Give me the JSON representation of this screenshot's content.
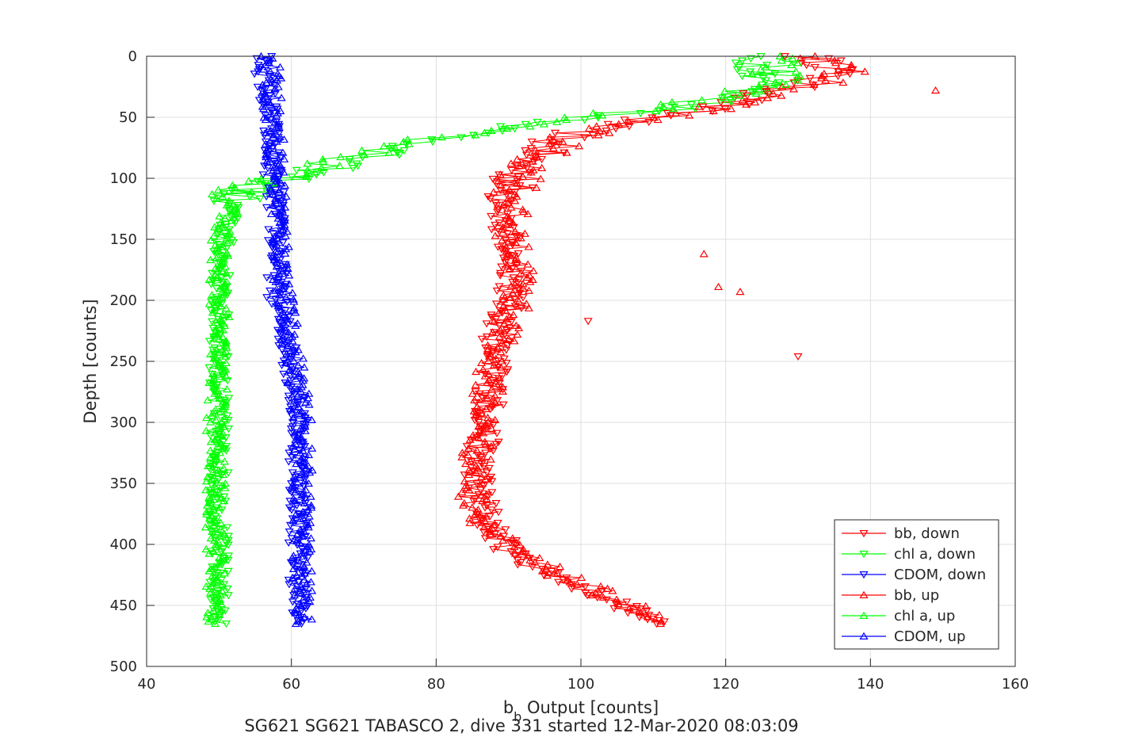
{
  "chart_data": {
    "type": "scatter",
    "title": "SG621 SG621 TABASCO 2, dive 331 started 12-Mar-2020 08:03:09",
    "xlabel_main": "b",
    "xlabel_sub": "b",
    "xlabel_rest": " Output [counts]",
    "ylabel": "Depth [counts]",
    "xlim": [
      40,
      160
    ],
    "ylim": [
      0,
      500
    ],
    "y_reversed": true,
    "grid": true,
    "legend_position": "bottom-right",
    "x_ticks": [
      "40",
      "60",
      "80",
      "100",
      "120",
      "140",
      "160"
    ],
    "y_ticks": [
      "0",
      "50",
      "100",
      "150",
      "200",
      "250",
      "300",
      "350",
      "400",
      "450",
      "500"
    ],
    "series": [
      {
        "name": "bb, down",
        "color": "#ff0000",
        "marker": "triangle-down",
        "profile": [
          [
            0,
            131
          ],
          [
            10,
            136
          ],
          [
            20,
            132
          ],
          [
            30,
            126
          ],
          [
            40,
            120
          ],
          [
            50,
            110
          ],
          [
            60,
            101
          ],
          [
            70,
            96
          ],
          [
            80,
            94
          ],
          [
            90,
            92
          ],
          [
            100,
            91
          ],
          [
            110,
            90
          ],
          [
            120,
            90
          ],
          [
            140,
            89
          ],
          [
            160,
            90
          ],
          [
            180,
            91
          ],
          [
            200,
            90
          ],
          [
            220,
            89
          ],
          [
            240,
            88
          ],
          [
            260,
            88
          ],
          [
            300,
            87
          ],
          [
            330,
            86
          ],
          [
            360,
            86
          ],
          [
            390,
            88
          ],
          [
            410,
            91
          ],
          [
            430,
            98
          ],
          [
            450,
            106
          ],
          [
            465,
            110
          ]
        ]
      },
      {
        "name": "chl a, down",
        "color": "#00ff00",
        "marker": "triangle-down",
        "profile": [
          [
            0,
            124
          ],
          [
            10,
            125
          ],
          [
            20,
            126
          ],
          [
            30,
            124
          ],
          [
            40,
            118
          ],
          [
            50,
            103
          ],
          [
            60,
            88
          ],
          [
            70,
            80
          ],
          [
            80,
            72
          ],
          [
            90,
            66
          ],
          [
            100,
            60
          ],
          [
            110,
            54
          ],
          [
            120,
            52
          ],
          [
            140,
            51
          ],
          [
            160,
            50.5
          ],
          [
            200,
            50
          ],
          [
            250,
            50
          ],
          [
            300,
            50
          ],
          [
            350,
            50
          ],
          [
            400,
            50
          ],
          [
            450,
            50
          ],
          [
            465,
            50
          ]
        ]
      },
      {
        "name": "CDOM, down",
        "color": "#0000ff",
        "marker": "triangle-down",
        "profile": [
          [
            0,
            56
          ],
          [
            50,
            57
          ],
          [
            100,
            57.5
          ],
          [
            150,
            58
          ],
          [
            200,
            58
          ],
          [
            250,
            60
          ],
          [
            300,
            61
          ],
          [
            350,
            61
          ],
          [
            400,
            61
          ],
          [
            450,
            61
          ],
          [
            465,
            61
          ]
        ]
      },
      {
        "name": "bb, up",
        "color": "#ff0000",
        "marker": "triangle-up",
        "profile": [
          [
            0,
            133
          ],
          [
            10,
            137
          ],
          [
            20,
            134
          ],
          [
            30,
            127
          ],
          [
            40,
            121
          ],
          [
            50,
            111
          ],
          [
            60,
            102
          ],
          [
            70,
            97
          ],
          [
            80,
            95
          ],
          [
            90,
            93
          ],
          [
            100,
            92
          ],
          [
            110,
            91
          ],
          [
            120,
            91
          ],
          [
            140,
            90
          ],
          [
            160,
            91
          ],
          [
            180,
            92
          ],
          [
            200,
            91
          ],
          [
            220,
            90
          ],
          [
            240,
            88
          ],
          [
            260,
            87.5
          ],
          [
            300,
            86.5
          ],
          [
            330,
            85.5
          ],
          [
            360,
            85
          ],
          [
            390,
            87.5
          ],
          [
            410,
            92
          ],
          [
            430,
            99
          ],
          [
            450,
            107
          ],
          [
            465,
            111
          ]
        ]
      },
      {
        "name": "chl a, up",
        "color": "#00ff00",
        "marker": "triangle-up",
        "profile": [
          [
            0,
            126
          ],
          [
            10,
            127
          ],
          [
            20,
            127
          ],
          [
            30,
            122
          ],
          [
            40,
            114
          ],
          [
            50,
            100
          ],
          [
            60,
            86
          ],
          [
            70,
            78
          ],
          [
            80,
            70
          ],
          [
            90,
            64
          ],
          [
            100,
            58
          ],
          [
            110,
            53
          ],
          [
            120,
            51.5
          ],
          [
            140,
            50.5
          ],
          [
            160,
            50
          ],
          [
            200,
            50
          ],
          [
            250,
            50
          ],
          [
            300,
            49.5
          ],
          [
            350,
            49.5
          ],
          [
            400,
            49.5
          ],
          [
            450,
            49.5
          ],
          [
            465,
            49.5
          ]
        ]
      },
      {
        "name": "CDOM, up",
        "color": "#0000ff",
        "marker": "triangle-up",
        "profile": [
          [
            0,
            57
          ],
          [
            50,
            57.5
          ],
          [
            100,
            58
          ],
          [
            150,
            58.5
          ],
          [
            200,
            59
          ],
          [
            250,
            60.5
          ],
          [
            300,
            61.5
          ],
          [
            350,
            61.5
          ],
          [
            400,
            61.5
          ],
          [
            450,
            61.5
          ],
          [
            465,
            61.5
          ]
        ]
      }
    ],
    "outliers": [
      {
        "series": 0,
        "x": 130,
        "y": 246
      },
      {
        "series": 3,
        "x": 149,
        "y": 28
      },
      {
        "series": 3,
        "x": 117,
        "y": 162
      },
      {
        "series": 3,
        "x": 119,
        "y": 189
      },
      {
        "series": 3,
        "x": 122,
        "y": 193
      },
      {
        "series": 0,
        "x": 101,
        "y": 217
      }
    ]
  }
}
